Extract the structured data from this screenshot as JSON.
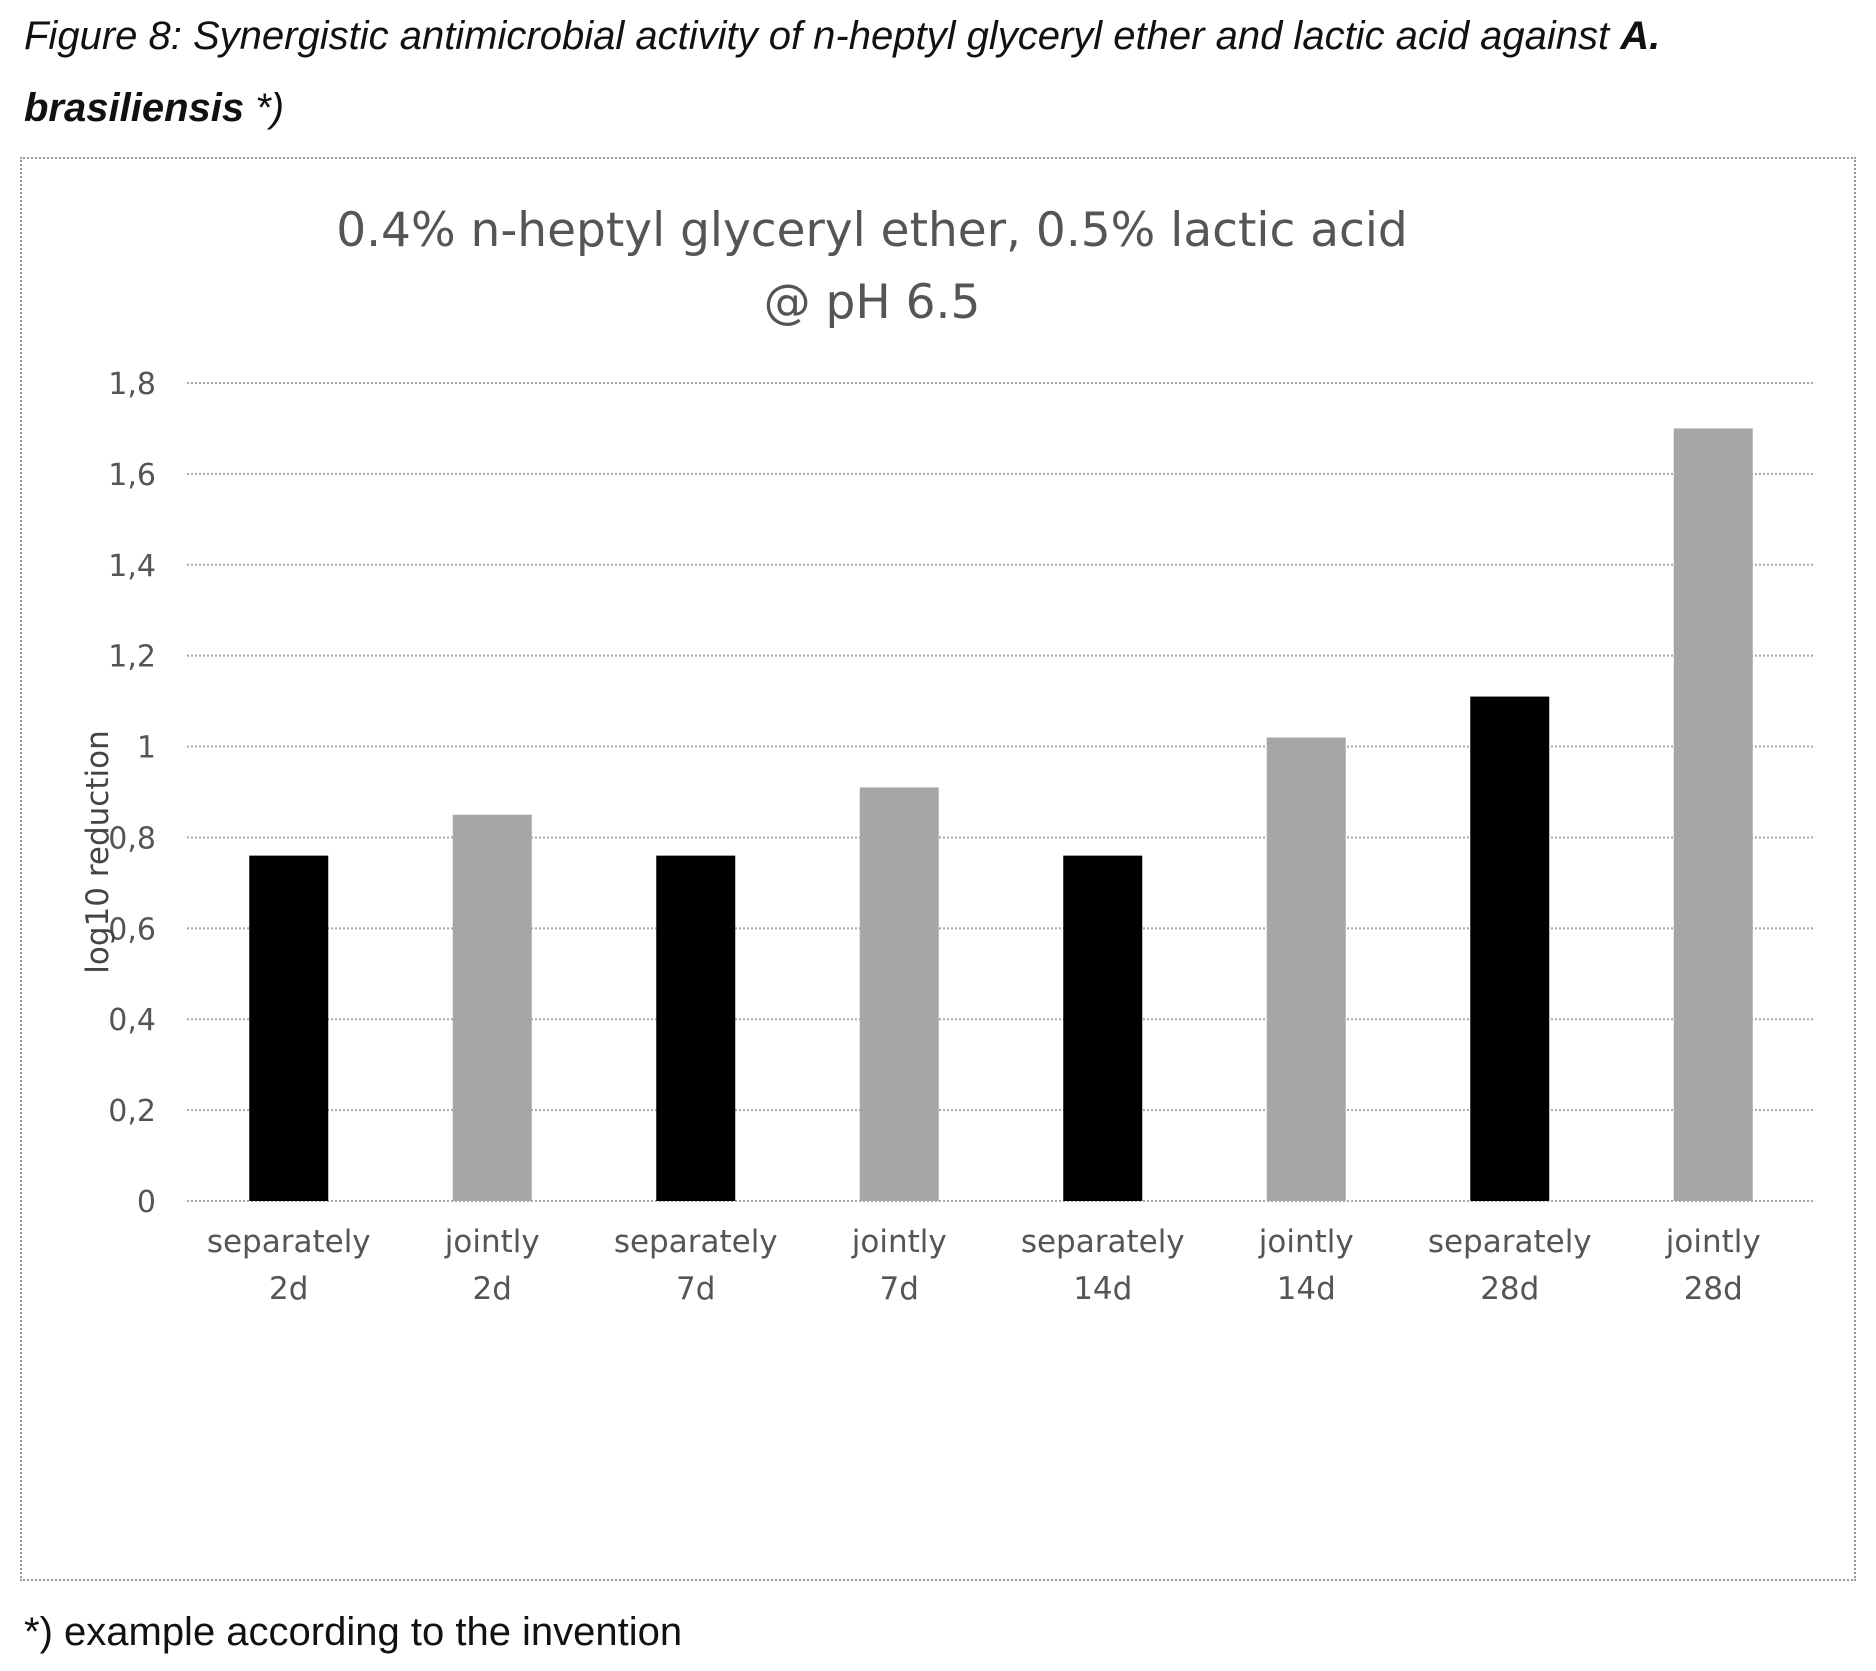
{
  "caption": {
    "line1": "Figure 8: Synergistic antimicrobial activity of n-heptyl glyceryl ether and lactic acid against",
    "line1_bold": "A.",
    "line2_bold": "brasiliensis",
    "line2": " *)"
  },
  "footnote": "*) example according to the invention",
  "chart_data": {
    "type": "bar",
    "title": [
      "0.4% n-heptyl glyceryl ether, 0.5% lactic acid",
      "@ pH 6.5"
    ],
    "xlabel": "",
    "ylabel": "log10 reduction",
    "ylim": [
      0,
      1.8
    ],
    "yticks": [
      0,
      0.2,
      0.4,
      0.6,
      0.8,
      1,
      1.2,
      1.4,
      1.6,
      1.8
    ],
    "ytick_labels": [
      "0",
      "0,2",
      "0,4",
      "0,6",
      "0,8",
      "1",
      "1,2",
      "1,4",
      "1,6",
      "1,8"
    ],
    "grid": true,
    "legend": "none",
    "categories": [
      [
        "separately",
        "2d"
      ],
      [
        "jointly",
        "2d"
      ],
      [
        "separately",
        "7d"
      ],
      [
        "jointly",
        "7d"
      ],
      [
        "separately",
        "14d"
      ],
      [
        "jointly",
        "14d"
      ],
      [
        "separately",
        "28d"
      ],
      [
        "jointly",
        "28d"
      ]
    ],
    "values": [
      0.76,
      0.85,
      0.76,
      0.91,
      0.76,
      1.02,
      1.11,
      1.7
    ],
    "bar_colors": [
      "#000000",
      "#a6a6a6",
      "#000000",
      "#a6a6a6",
      "#000000",
      "#a6a6a6",
      "#000000",
      "#a6a6a6"
    ]
  }
}
